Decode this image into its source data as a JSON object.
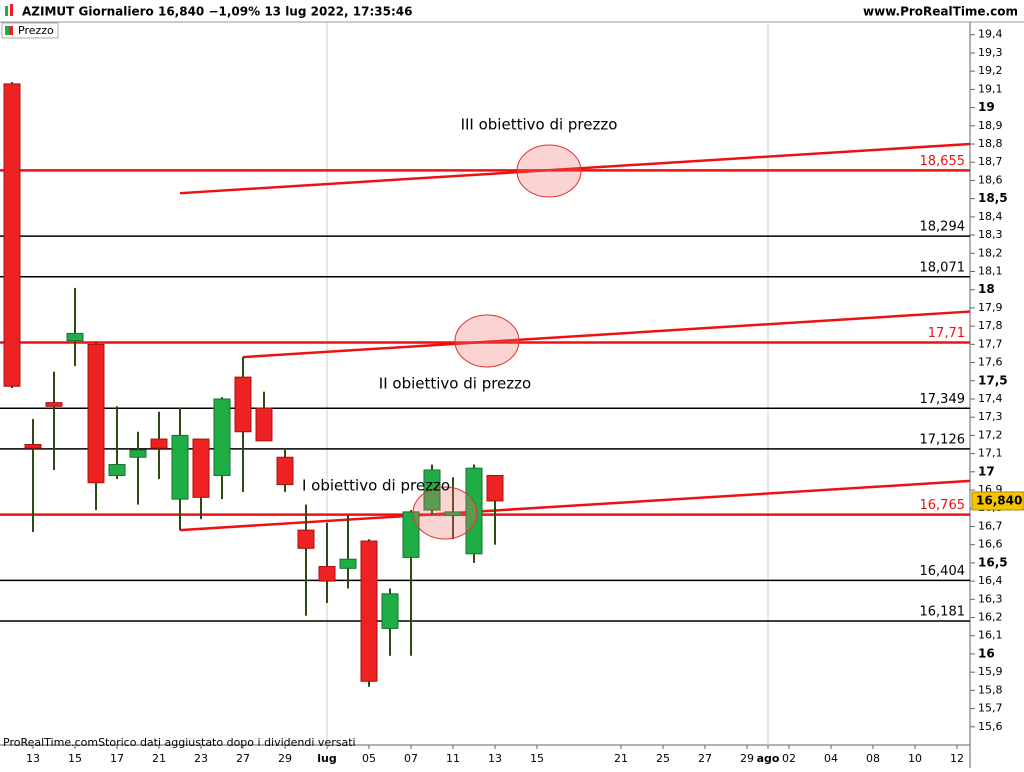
{
  "header": {
    "title": "AZIMUT Giornaliero 16,840 −1,09% 13 lug 2022, 17:35:46",
    "site": "www.ProRealTime.com"
  },
  "footer": "ProRealTime.comStorico dati aggiustato dopo i dividendi versati",
  "chart_data": {
    "type": "candlestick",
    "categories": [
      null,
      "13",
      null,
      "15",
      null,
      "17",
      null,
      "21",
      null,
      "23",
      null,
      "27",
      null,
      "29",
      null,
      "lug",
      null,
      "05",
      null,
      "07",
      null,
      "11",
      null,
      "13",
      null,
      "15",
      null,
      null,
      null,
      "21",
      null,
      "25",
      null,
      "27",
      null,
      "29",
      "ago",
      "02",
      null,
      "04",
      null,
      "08",
      null,
      "10",
      null,
      "12"
    ],
    "series": [
      {
        "name": "Prezzo",
        "up_color": "#1fae45",
        "down_color": "#ee2222",
        "open": [
          19.13,
          17.15,
          17.38,
          17.72,
          17.7,
          16.98,
          17.08,
          17.18,
          16.85,
          17.18,
          16.98,
          17.52,
          17.35,
          17.08,
          16.68,
          16.48,
          16.47,
          16.62,
          16.14,
          16.53,
          16.79,
          16.76,
          16.55,
          16.98,
          null,
          null,
          null,
          null,
          null,
          null,
          null,
          null,
          null,
          null,
          null,
          null,
          null,
          null,
          null,
          null,
          null,
          null,
          null,
          null,
          null,
          null
        ],
        "high": [
          19.14,
          17.29,
          17.55,
          18.01,
          17.71,
          17.36,
          17.22,
          17.33,
          17.35,
          17.18,
          17.41,
          17.63,
          17.44,
          17.13,
          16.82,
          16.72,
          16.76,
          16.63,
          16.36,
          16.79,
          17.04,
          16.97,
          17.04,
          16.98,
          null,
          null,
          null,
          null,
          null,
          null,
          null,
          null,
          null,
          null,
          null,
          null,
          null,
          null,
          null,
          null,
          null,
          null,
          null,
          null,
          null,
          null
        ],
        "low": [
          17.46,
          16.67,
          17.01,
          17.58,
          16.79,
          16.96,
          16.82,
          16.96,
          16.68,
          16.74,
          16.85,
          16.89,
          17.17,
          16.89,
          16.21,
          16.28,
          16.36,
          15.82,
          15.99,
          15.99,
          16.76,
          16.63,
          16.5,
          16.6,
          null,
          null,
          null,
          null,
          null,
          null,
          null,
          null,
          null,
          null,
          null,
          null,
          null,
          null,
          null,
          null,
          null,
          null,
          null,
          null,
          null,
          null
        ],
        "close": [
          17.47,
          17.13,
          17.36,
          17.76,
          16.94,
          17.04,
          17.12,
          17.13,
          17.2,
          16.86,
          17.4,
          17.22,
          17.17,
          16.93,
          16.58,
          16.4,
          16.52,
          15.85,
          16.33,
          16.78,
          17.01,
          16.78,
          17.02,
          16.84,
          null,
          null,
          null,
          null,
          null,
          null,
          null,
          null,
          null,
          null,
          null,
          null,
          null,
          null,
          null,
          null,
          null,
          null,
          null,
          null,
          null,
          null
        ]
      }
    ],
    "ylim": [
      15.5,
      19.47
    ],
    "yticks": [
      {
        "value": 15.6,
        "label": "15,6"
      },
      {
        "value": 15.7,
        "label": "15,7"
      },
      {
        "value": 15.8,
        "label": "15,8"
      },
      {
        "value": 15.9,
        "label": "15,9"
      },
      16,
      {
        "value": 16.1,
        "label": "16,1"
      },
      {
        "value": 16.2,
        "label": "16,2"
      },
      {
        "value": 16.3,
        "label": "16,3"
      },
      {
        "value": 16.4,
        "label": "16,4"
      },
      {
        "value": 16.5,
        "label": "16,5"
      },
      {
        "value": 16.6,
        "label": "16,6"
      },
      {
        "value": 16.7,
        "label": "16,7"
      },
      {
        "value": 16.8,
        "label": "16,8"
      },
      {
        "value": 16.9,
        "label": "16,9"
      },
      17,
      {
        "value": 17.1,
        "label": "17,1"
      },
      {
        "value": 17.2,
        "label": "17,2"
      },
      {
        "value": 17.3,
        "label": "17,3"
      },
      {
        "value": 17.4,
        "label": "17,4"
      },
      {
        "value": 17.5,
        "label": "17,5"
      },
      {
        "value": 17.6,
        "label": "17,6"
      },
      {
        "value": 17.7,
        "label": "17,7"
      },
      {
        "value": 17.8,
        "label": "17,8"
      },
      {
        "value": 17.9,
        "label": "17,9"
      },
      18,
      {
        "value": 18.1,
        "label": "18,1"
      },
      {
        "value": 18.2,
        "label": "18,2"
      },
      {
        "value": 18.3,
        "label": "18,3"
      },
      {
        "value": 18.4,
        "label": "18,4"
      },
      {
        "value": 18.5,
        "label": "18,5"
      },
      {
        "value": 18.6,
        "label": "18,6"
      },
      {
        "value": 18.7,
        "label": "18,7"
      },
      {
        "value": 18.8,
        "label": "18,8"
      },
      {
        "value": 18.9,
        "label": "18,9"
      },
      19,
      {
        "value": 19.1,
        "label": "19,1"
      },
      {
        "value": 19.2,
        "label": "19,2"
      },
      {
        "value": 19.3,
        "label": "19,3"
      },
      {
        "value": 19.4,
        "label": "19,4"
      }
    ],
    "levels": [
      {
        "value": 18.655,
        "label": "18,655",
        "color": "#ee1111"
      },
      {
        "value": 18.294,
        "label": "18,294",
        "color": "#000000"
      },
      {
        "value": 18.071,
        "label": "18,071",
        "color": "#000000"
      },
      {
        "value": 17.71,
        "label": "17,71",
        "color": "#ee1111"
      },
      {
        "value": 17.349,
        "label": "17,349",
        "color": "#000000"
      },
      {
        "value": 17.126,
        "label": "17,126",
        "color": "#000000"
      },
      {
        "value": 16.765,
        "label": "16,765",
        "color": "#ee1111"
      },
      {
        "value": 16.404,
        "label": "16,404",
        "color": "#000000"
      },
      {
        "value": 16.181,
        "label": "16,181",
        "color": "#000000"
      }
    ],
    "trendlines": [
      {
        "x": [
          8,
          45.62
        ],
        "y": [
          18.53,
          18.8
        ],
        "color": "#ee1111"
      },
      {
        "x": [
          11,
          45.62
        ],
        "y": [
          17.63,
          17.88
        ],
        "color": "#ee1111"
      },
      {
        "x": [
          8,
          45.62
        ],
        "y": [
          16.68,
          16.95
        ],
        "color": "#ee1111"
      }
    ],
    "annotations": [
      "III obiettivo di prezzo",
      "II obiettivo di prezzo",
      "I obiettivo di prezzo"
    ],
    "last_price": {
      "value": 16.84,
      "label": "16,840"
    }
  }
}
